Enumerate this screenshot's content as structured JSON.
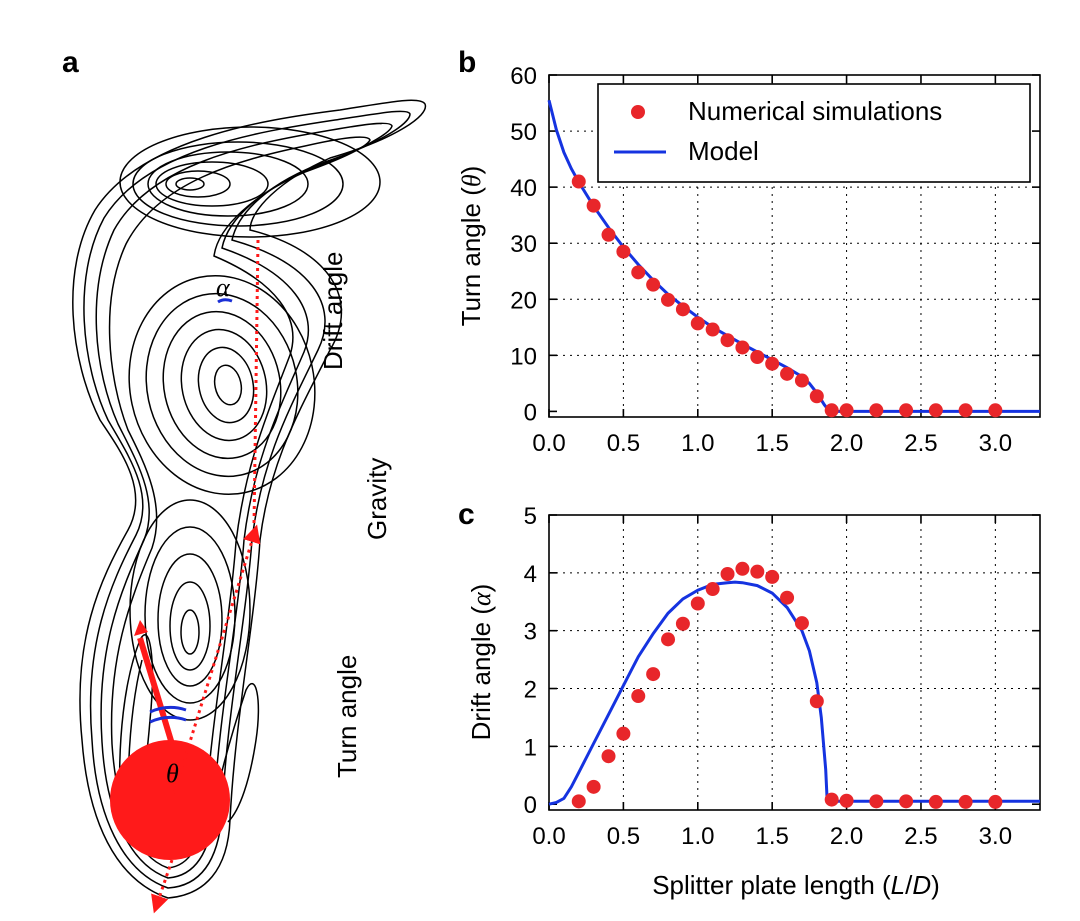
{
  "panels": {
    "a": {
      "letter": "a",
      "labels": {
        "drift": "Drift angle",
        "gravity": "Gravity",
        "turn": "Turn angle",
        "alpha": "α",
        "theta": "θ"
      },
      "colors": {
        "body": "#ff1a1a",
        "arc": "#1a2fd6",
        "contour": "#000000"
      }
    },
    "b": {
      "letter": "b"
    },
    "c": {
      "letter": "c"
    }
  },
  "legend": {
    "simulations": "Numerical simulations",
    "model": "Model"
  },
  "colors": {
    "points": "#e8262a",
    "model": "#1533e0"
  },
  "chart_data": [
    {
      "id": "b",
      "type": "line",
      "title": "",
      "xlabel": "",
      "ylabel": "Turn angle (θ)",
      "ylabel_parts": [
        "Turn angle (",
        "θ",
        ")"
      ],
      "xlim": [
        0.0,
        3.3
      ],
      "ylim": [
        -1,
        60
      ],
      "xticks": [
        0.0,
        0.5,
        1.0,
        1.5,
        2.0,
        2.5,
        3.0
      ],
      "xtick_labels": [
        "0.0",
        "0.5",
        "1.0",
        "1.5",
        "2.0",
        "2.5",
        "3.0"
      ],
      "yticks": [
        0,
        10,
        20,
        30,
        40,
        50,
        60
      ],
      "ytick_labels": [
        "0",
        "10",
        "20",
        "30",
        "40",
        "50",
        "60"
      ],
      "grid": true,
      "legend_position": "top-right",
      "series": [
        {
          "name": "Numerical simulations",
          "kind": "scatter",
          "x": [
            0.2,
            0.3,
            0.4,
            0.5,
            0.6,
            0.7,
            0.8,
            0.9,
            1.0,
            1.1,
            1.2,
            1.3,
            1.4,
            1.5,
            1.6,
            1.7,
            1.8,
            1.9,
            2.0,
            2.2,
            2.4,
            2.6,
            2.8,
            3.0
          ],
          "y": [
            41.0,
            36.7,
            31.5,
            28.5,
            24.8,
            22.6,
            19.9,
            18.2,
            15.7,
            14.6,
            12.7,
            11.4,
            9.7,
            8.5,
            6.7,
            5.5,
            2.7,
            0.2,
            0.2,
            0.2,
            0.2,
            0.2,
            0.2,
            0.2
          ]
        },
        {
          "name": "Model",
          "kind": "line",
          "x": [
            0.0,
            0.05,
            0.1,
            0.15,
            0.2,
            0.3,
            0.4,
            0.5,
            0.6,
            0.7,
            0.8,
            0.9,
            1.0,
            1.1,
            1.2,
            1.3,
            1.4,
            1.5,
            1.6,
            1.7,
            1.75,
            1.8,
            1.85,
            1.88,
            1.9,
            2.0,
            2.5,
            3.0,
            3.3
          ],
          "y": [
            55.5,
            50.2,
            46.2,
            43.3,
            40.9,
            36.6,
            32.8,
            29.3,
            26.2,
            23.4,
            20.9,
            18.8,
            16.8,
            15.0,
            13.5,
            12.0,
            10.6,
            9.2,
            7.8,
            6.2,
            5.0,
            3.3,
            1.2,
            0.2,
            0.0,
            0.0,
            0.0,
            0.0,
            0.0
          ]
        }
      ]
    },
    {
      "id": "c",
      "type": "line",
      "title": "",
      "xlabel": "Splitter plate length (L/D)",
      "xlabel_parts": [
        "Splitter plate length (",
        "L",
        "/",
        "D",
        ")"
      ],
      "ylabel": "Drift angle (α)",
      "ylabel_parts": [
        "Drift angle (",
        "α",
        ")"
      ],
      "xlim": [
        0.0,
        3.3
      ],
      "ylim": [
        -0.1,
        5
      ],
      "xticks": [
        0.0,
        0.5,
        1.0,
        1.5,
        2.0,
        2.5,
        3.0
      ],
      "xtick_labels": [
        "0.0",
        "0.5",
        "1.0",
        "1.5",
        "2.0",
        "2.5",
        "3.0"
      ],
      "yticks": [
        0,
        1,
        2,
        3,
        4,
        5
      ],
      "ytick_labels": [
        "0",
        "1",
        "2",
        "3",
        "4",
        "5"
      ],
      "grid": true,
      "series": [
        {
          "name": "Numerical simulations",
          "kind": "scatter",
          "x": [
            0.2,
            0.3,
            0.4,
            0.5,
            0.6,
            0.7,
            0.8,
            0.9,
            1.0,
            1.1,
            1.2,
            1.3,
            1.4,
            1.5,
            1.6,
            1.7,
            1.8,
            1.9,
            2.0,
            2.2,
            2.4,
            2.6,
            2.8,
            3.0
          ],
          "y": [
            0.05,
            0.3,
            0.83,
            1.22,
            1.87,
            2.25,
            2.85,
            3.12,
            3.47,
            3.72,
            3.98,
            4.07,
            4.02,
            3.93,
            3.57,
            3.13,
            1.78,
            0.08,
            0.06,
            0.05,
            0.05,
            0.04,
            0.04,
            0.04
          ]
        },
        {
          "name": "Model",
          "kind": "line",
          "x": [
            0.0,
            0.05,
            0.1,
            0.15,
            0.2,
            0.3,
            0.4,
            0.5,
            0.6,
            0.7,
            0.8,
            0.9,
            1.0,
            1.1,
            1.2,
            1.25,
            1.3,
            1.4,
            1.5,
            1.6,
            1.7,
            1.75,
            1.8,
            1.83,
            1.86,
            1.87,
            1.9,
            2.0,
            2.5,
            3.0,
            3.3
          ],
          "y": [
            0.0,
            0.03,
            0.1,
            0.3,
            0.55,
            1.05,
            1.55,
            2.05,
            2.55,
            2.95,
            3.3,
            3.55,
            3.7,
            3.8,
            3.83,
            3.84,
            3.83,
            3.78,
            3.65,
            3.4,
            3.0,
            2.65,
            2.1,
            1.5,
            0.6,
            0.05,
            0.05,
            0.05,
            0.05,
            0.05,
            0.05
          ]
        }
      ]
    }
  ]
}
